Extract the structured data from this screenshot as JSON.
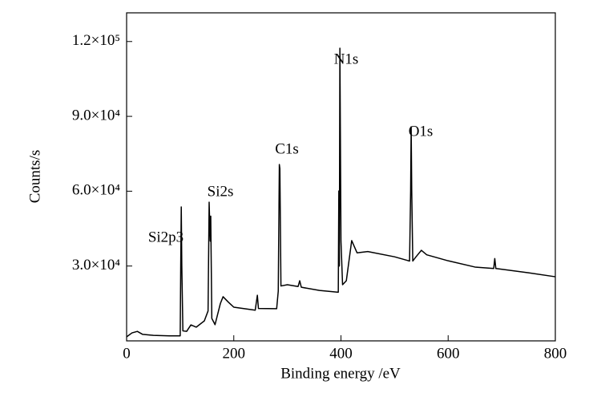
{
  "chart_data": {
    "type": "line",
    "x_label": "Binding energy /eV",
    "y_label": "Counts/s",
    "annotations": [
      "Si2p3",
      "Si2s",
      "C1s",
      "N1s",
      "O1s"
    ],
    "xlim": [
      0,
      800
    ],
    "xticks": [
      0,
      200,
      400,
      600,
      800
    ],
    "ylim": [
      0,
      131500
    ],
    "yticks": [
      {
        "value": 30000,
        "label": "3.0×10⁴"
      },
      {
        "value": 60000,
        "label": "6.0×10⁴"
      },
      {
        "value": 90000,
        "label": "9.0×10⁴"
      },
      {
        "value": 120000,
        "label": "1.2×10⁵"
      }
    ],
    "color": "#000000",
    "x": [
      0,
      10,
      20,
      30,
      50,
      80,
      100,
      101,
      102,
      103,
      105,
      112,
      120,
      130,
      145,
      152,
      154,
      156,
      157,
      159,
      165,
      175,
      180,
      190,
      200,
      220,
      240,
      244,
      246,
      280,
      283,
      285,
      286,
      288,
      300,
      320,
      323,
      326,
      360,
      395,
      396,
      397,
      398,
      400,
      403,
      410,
      420,
      430,
      450,
      500,
      528,
      530,
      531,
      532,
      534,
      540,
      550,
      560,
      600,
      650,
      685,
      687,
      689,
      750,
      800
    ],
    "values": [
      1600,
      3200,
      3800,
      2600,
      2200,
      2000,
      2000,
      30000,
      53700,
      30000,
      4000,
      3800,
      6400,
      5500,
      8000,
      12000,
      55600,
      40000,
      50000,
      9000,
      6500,
      15000,
      17700,
      15500,
      13500,
      12900,
      12300,
      18300,
      13000,
      12900,
      20000,
      70700,
      69000,
      22000,
      22500,
      21800,
      24100,
      21500,
      20200,
      19500,
      60100,
      30000,
      117300,
      40000,
      22500,
      24100,
      40200,
      35300,
      35800,
      33700,
      32000,
      60000,
      85800,
      60700,
      32000,
      33700,
      36300,
      34500,
      32100,
      29600,
      29000,
      33000,
      29000,
      27300,
      25700
    ]
  }
}
